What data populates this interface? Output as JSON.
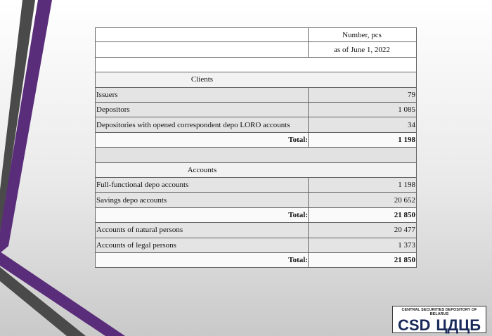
{
  "table": {
    "header": [
      "Number, pcs",
      "as of  June 1, 2022"
    ],
    "sections": [
      {
        "title": "Clients",
        "groups": [
          {
            "rows": [
              [
                "Issuers",
                "79"
              ],
              [
                "Depositors",
                "1 085"
              ],
              [
                "Depositories with opened correspondent depo LORO accounts",
                "34"
              ]
            ],
            "total": [
              "Total:",
              "1 198"
            ]
          }
        ]
      },
      {
        "title": "Accounts",
        "groups": [
          {
            "rows": [
              [
                "Full-functional depo accounts",
                "1 198"
              ],
              [
                "Savings depo accounts",
                "20 652"
              ]
            ],
            "total": [
              "Total:",
              "21 850"
            ]
          },
          {
            "rows": [
              [
                "Accounts of natural persons",
                "20 477"
              ],
              [
                "Accounts of legal persons",
                "1 373"
              ]
            ],
            "total": [
              "Total:",
              "21 850"
            ]
          }
        ]
      }
    ]
  },
  "logo": {
    "caption": "CENTRAL SECURITIES DEPOSITORY OF BELARUS",
    "latin": "CSD",
    "cyrillic": "ЦДЦБ"
  }
}
